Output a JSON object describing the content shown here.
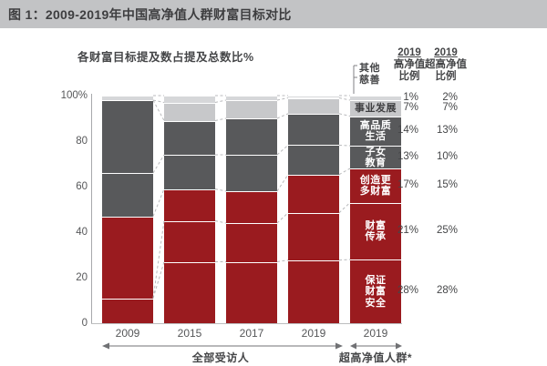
{
  "figure": {
    "title": "图 1：2009-2019年中国高净值人群财富目标对比"
  },
  "colors": {
    "red": "#9a1b1f",
    "darkGray": "#58595b",
    "lightGray": "#c7c8ca",
    "stripGray": "#d6d7d9",
    "bannerBg": "#c2c3c5",
    "connector": "#b9babc",
    "arrow": "#707174",
    "textDark": "#3e3e40",
    "white": "#ffffff"
  },
  "bracket": {
    "labels": [
      "其他",
      "慈善"
    ]
  },
  "right_table": {
    "col1_header": [
      "2019",
      "高净值",
      "比例"
    ],
    "col2_header": [
      "2019",
      "超高净值",
      "比例"
    ],
    "rows": [
      {
        "category_key": "other",
        "category": "其他/慈善",
        "hnw": "1%",
        "uhnw": "2%"
      },
      {
        "category_key": "career",
        "category": "事业发展",
        "hnw": "7%",
        "uhnw": "7%"
      },
      {
        "category_key": "quality",
        "category": "高品质生活",
        "hnw": "14%",
        "uhnw": "13%"
      },
      {
        "category_key": "children",
        "category": "子女教育",
        "hnw": "13%",
        "uhnw": "10%"
      },
      {
        "category_key": "create",
        "category": "创造更多财富",
        "hnw": "17%",
        "uhnw": "15%"
      },
      {
        "category_key": "inheritance",
        "category": "财富传承",
        "hnw": "21%",
        "uhnw": "25%"
      },
      {
        "category_key": "safety",
        "category": "保证财富安全",
        "hnw": "28%",
        "uhnw": "28%"
      }
    ]
  },
  "axis_groups": [
    "全部受访人",
    "超高净值人群*"
  ],
  "chart_data": {
    "type": "bar",
    "stacked": true,
    "unit": "%",
    "title": "各财富目标提及数占提及总数比%",
    "ylim": [
      0,
      100
    ],
    "grid": false,
    "legend": "segment labels shown inside last bar",
    "y_ticks": [
      {
        "label": "100%",
        "value": 100
      },
      {
        "label": "80",
        "value": 80
      },
      {
        "label": "60",
        "value": 60
      },
      {
        "label": "40",
        "value": 40
      },
      {
        "label": "20",
        "value": 20
      },
      {
        "label": "0",
        "value": 0
      }
    ],
    "category_order_bottom_to_top": [
      "safety",
      "inheritance",
      "create",
      "children",
      "quality",
      "career",
      "other"
    ],
    "category_names": {
      "safety": "保证财富安全",
      "inheritance": "财富传承",
      "create": "创造更多财富",
      "children": "子女教育",
      "quality": "高品质生活",
      "career": "事业发展",
      "other": "其他/慈善"
    },
    "segment_labels_last_bar": {
      "safety": [
        "保证",
        "财富",
        "安全"
      ],
      "inheritance": [
        "财富",
        "传承"
      ],
      "create": [
        "创造更",
        "多财富"
      ],
      "children": [
        "子女",
        "教育"
      ],
      "quality": [
        "高品质",
        "生活"
      ],
      "career": [
        "事业发展"
      ]
    },
    "bars": [
      {
        "label": "2009",
        "group": "全部受访人",
        "values": {
          "safety": 11,
          "inheritance": 0,
          "create": 36,
          "children": 19,
          "quality": 32,
          "career": 0,
          "other": 2
        }
      },
      {
        "label": "2015",
        "group": "全部受访人",
        "values": {
          "safety": 27,
          "inheritance": 18,
          "create": 14,
          "children": 15,
          "quality": 15,
          "career": 8,
          "other": 3
        }
      },
      {
        "label": "2017",
        "group": "全部受访人",
        "values": {
          "safety": 27,
          "inheritance": 17,
          "create": 14,
          "children": 16,
          "quality": 16,
          "career": 8,
          "other": 2
        }
      },
      {
        "label": "2019",
        "group": "全部受访人",
        "values": {
          "safety": 28,
          "inheritance": 21,
          "create": 17,
          "children": 13,
          "quality": 14,
          "career": 7,
          "other": 1
        }
      },
      {
        "label": "2019",
        "group": "超高净值人群*",
        "values": {
          "safety": 28,
          "inheritance": 25,
          "create": 15,
          "children": 10,
          "quality": 13,
          "career": 7,
          "other": 2
        }
      }
    ]
  }
}
